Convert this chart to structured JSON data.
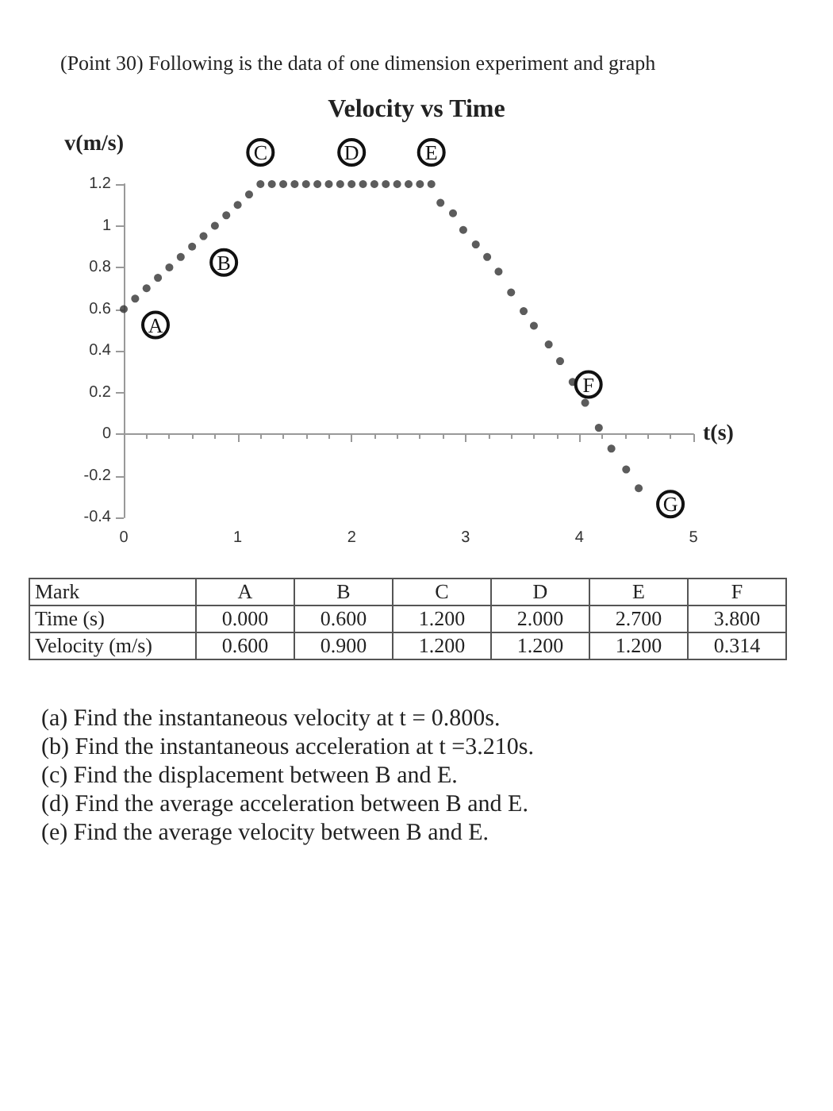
{
  "chart_data": {
    "type": "scatter",
    "title": "Velocity vs Time",
    "xlabel": "t(s)",
    "ylabel": "v(m/s)",
    "x": [
      0,
      0.1,
      0.2,
      0.3,
      0.4,
      0.5,
      0.6,
      0.7,
      0.8,
      0.9,
      1.0,
      1.1,
      1.2,
      1.3,
      1.4,
      1.5,
      1.6,
      1.7,
      1.8,
      1.9,
      2.0,
      2.1,
      2.2,
      2.3,
      2.4,
      2.5,
      2.6,
      2.7,
      2.78,
      2.89,
      2.98,
      3.09,
      3.19,
      3.29,
      3.4,
      3.51,
      3.6,
      3.73,
      3.83,
      3.94,
      4.05,
      4.17,
      4.28,
      4.41,
      4.52
    ],
    "series": [
      {
        "color": "#333333",
        "values": [
          0.6,
          0.65,
          0.7,
          0.75,
          0.8,
          0.85,
          0.9,
          0.95,
          1.0,
          1.05,
          1.1,
          1.15,
          1.2,
          1.2,
          1.2,
          1.2,
          1.2,
          1.2,
          1.2,
          1.2,
          1.2,
          1.2,
          1.2,
          1.2,
          1.2,
          1.2,
          1.2,
          1.2,
          1.11,
          1.06,
          0.98,
          0.91,
          0.85,
          0.78,
          0.68,
          0.59,
          0.52,
          0.43,
          0.35,
          0.25,
          0.15,
          0.03,
          -0.07,
          -0.17,
          -0.26
        ]
      }
    ],
    "xlim": [
      0,
      5
    ],
    "xticks": [
      0,
      1,
      2,
      3,
      4,
      5
    ],
    "ylim": [
      -0.4,
      1.2
    ],
    "yticks": [
      -0.4,
      -0.2,
      0,
      0.2,
      0.4,
      0.6,
      0.8,
      1,
      1.2
    ],
    "marker": "circle",
    "annotations": [
      "(Point 30) Following is the data of one dimension experiment and graph",
      "Mark",
      "A",
      "B",
      "C",
      "D",
      "E",
      "F",
      "Time (s)",
      "0.000",
      "0.600",
      "1.200",
      "2.000",
      "2.700",
      "3.800",
      "Velocity (m/s)",
      "0.600",
      "0.900",
      "1.200",
      "1.200",
      "1.200",
      "0.314",
      "(a) Find the instantaneous velocity at t = 0.800s.",
      "(b) Find the instantaneous acceleration at t =3.210s.",
      "(c) Find the displacement between B and E.",
      "(d) Find the average acceleration between B and E.",
      "(e) Find the average velocity between B and E.",
      {
        "text": "A",
        "x": 0,
        "y": 0.6
      },
      {
        "text": "B",
        "x": 0.6,
        "y": 0.9
      },
      {
        "text": "C",
        "x": 1.2,
        "y": 1.2
      },
      {
        "text": "D",
        "x": 2.0,
        "y": 1.2
      },
      {
        "text": "E",
        "x": 2.7,
        "y": 1.2
      },
      {
        "text": "F",
        "x": 3.8,
        "y": 0.314
      },
      {
        "text": "G",
        "x": 4.52,
        "y": -0.26
      }
    ]
  }
}
